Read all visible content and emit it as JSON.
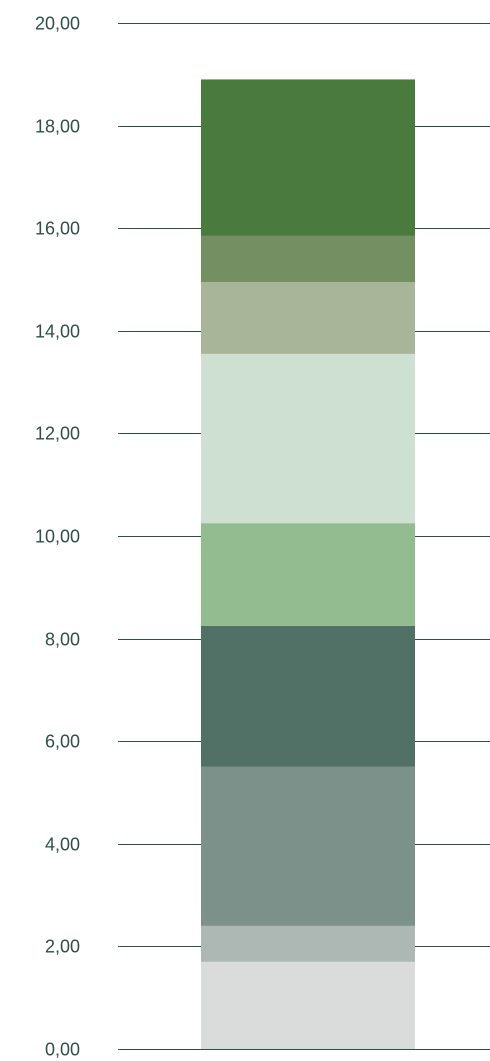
{
  "chart_data": {
    "type": "bar",
    "stacked": true,
    "categories": [
      ""
    ],
    "ylim": [
      0,
      20
    ],
    "yticks": [
      "0,00",
      "2,00",
      "4,00",
      "6,00",
      "8,00",
      "10,00",
      "12,00",
      "14,00",
      "16,00",
      "18,00",
      "20,00"
    ],
    "grid": true,
    "legend": "none",
    "series": [
      {
        "values": [
          1.7
        ],
        "color": "#d9dcdb"
      },
      {
        "values": [
          0.7
        ],
        "color": "#adb8b4"
      },
      {
        "values": [
          3.1
        ],
        "color": "#7c9189"
      },
      {
        "values": [
          2.75
        ],
        "color": "#517066"
      },
      {
        "values": [
          2.0
        ],
        "color": "#93bc90"
      },
      {
        "values": [
          3.3
        ],
        "color": "#cde0d2"
      },
      {
        "values": [
          1.4
        ],
        "color": "#a8b598"
      },
      {
        "values": [
          0.9
        ],
        "color": "#748f61"
      },
      {
        "values": [
          3.05
        ],
        "color": "#4a7a3e"
      }
    ]
  },
  "colors": {
    "axis_text": "#2f4f48",
    "gridline": "#2f4f48"
  }
}
